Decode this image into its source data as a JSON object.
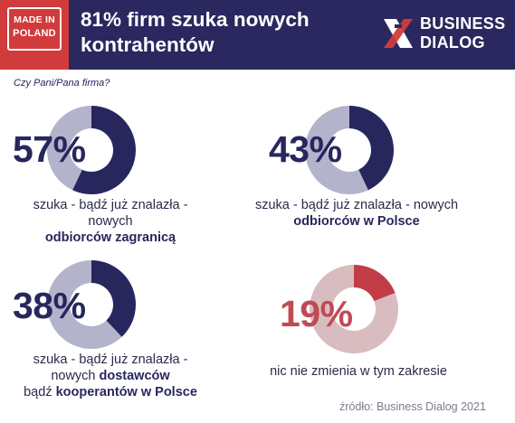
{
  "header": {
    "badge_line1": "MADE IN",
    "badge_line2": "POLAND",
    "title_line1": "81% firm szuka nowych",
    "title_line2": "kontrahentów",
    "logo_line1": "BUSINESS",
    "logo_line2": "DIALOG"
  },
  "question": "Czy Pani/Pana firma?",
  "colors": {
    "navy": "#27275e",
    "navy_track": "#b4b3cc",
    "red": "#c23c48",
    "red_track": "#d9bcbf",
    "red_badge": "#d23b3c"
  },
  "chart_data": [
    {
      "type": "pie",
      "value_percent": 57,
      "value_label": "57%",
      "caption": [
        "szuka - bądź już znalazła -",
        "nowych"
      ],
      "caption_bold": "odbiorców zagranicą"
    },
    {
      "type": "pie",
      "value_percent": 43,
      "value_label": "43%",
      "caption": [
        "szuka - bądź już znalazła - nowych"
      ],
      "caption_bold": "odbiorców w Polsce"
    },
    {
      "type": "pie",
      "value_percent": 38,
      "value_label": "38%",
      "caption_line1": "szuka - bądź już znalazła -",
      "caption_line2_plain": "nowych ",
      "caption_line2_bold": "dostawców",
      "caption_line3_plain": "bądź ",
      "caption_line3_bold": "kooperantów w Polsce"
    },
    {
      "type": "pie",
      "value_percent": 19,
      "value_label": "19%",
      "caption": [
        "nic nie zmienia w tym zakresie"
      ]
    }
  ],
  "source": "źródło: Business Dialog 2021"
}
